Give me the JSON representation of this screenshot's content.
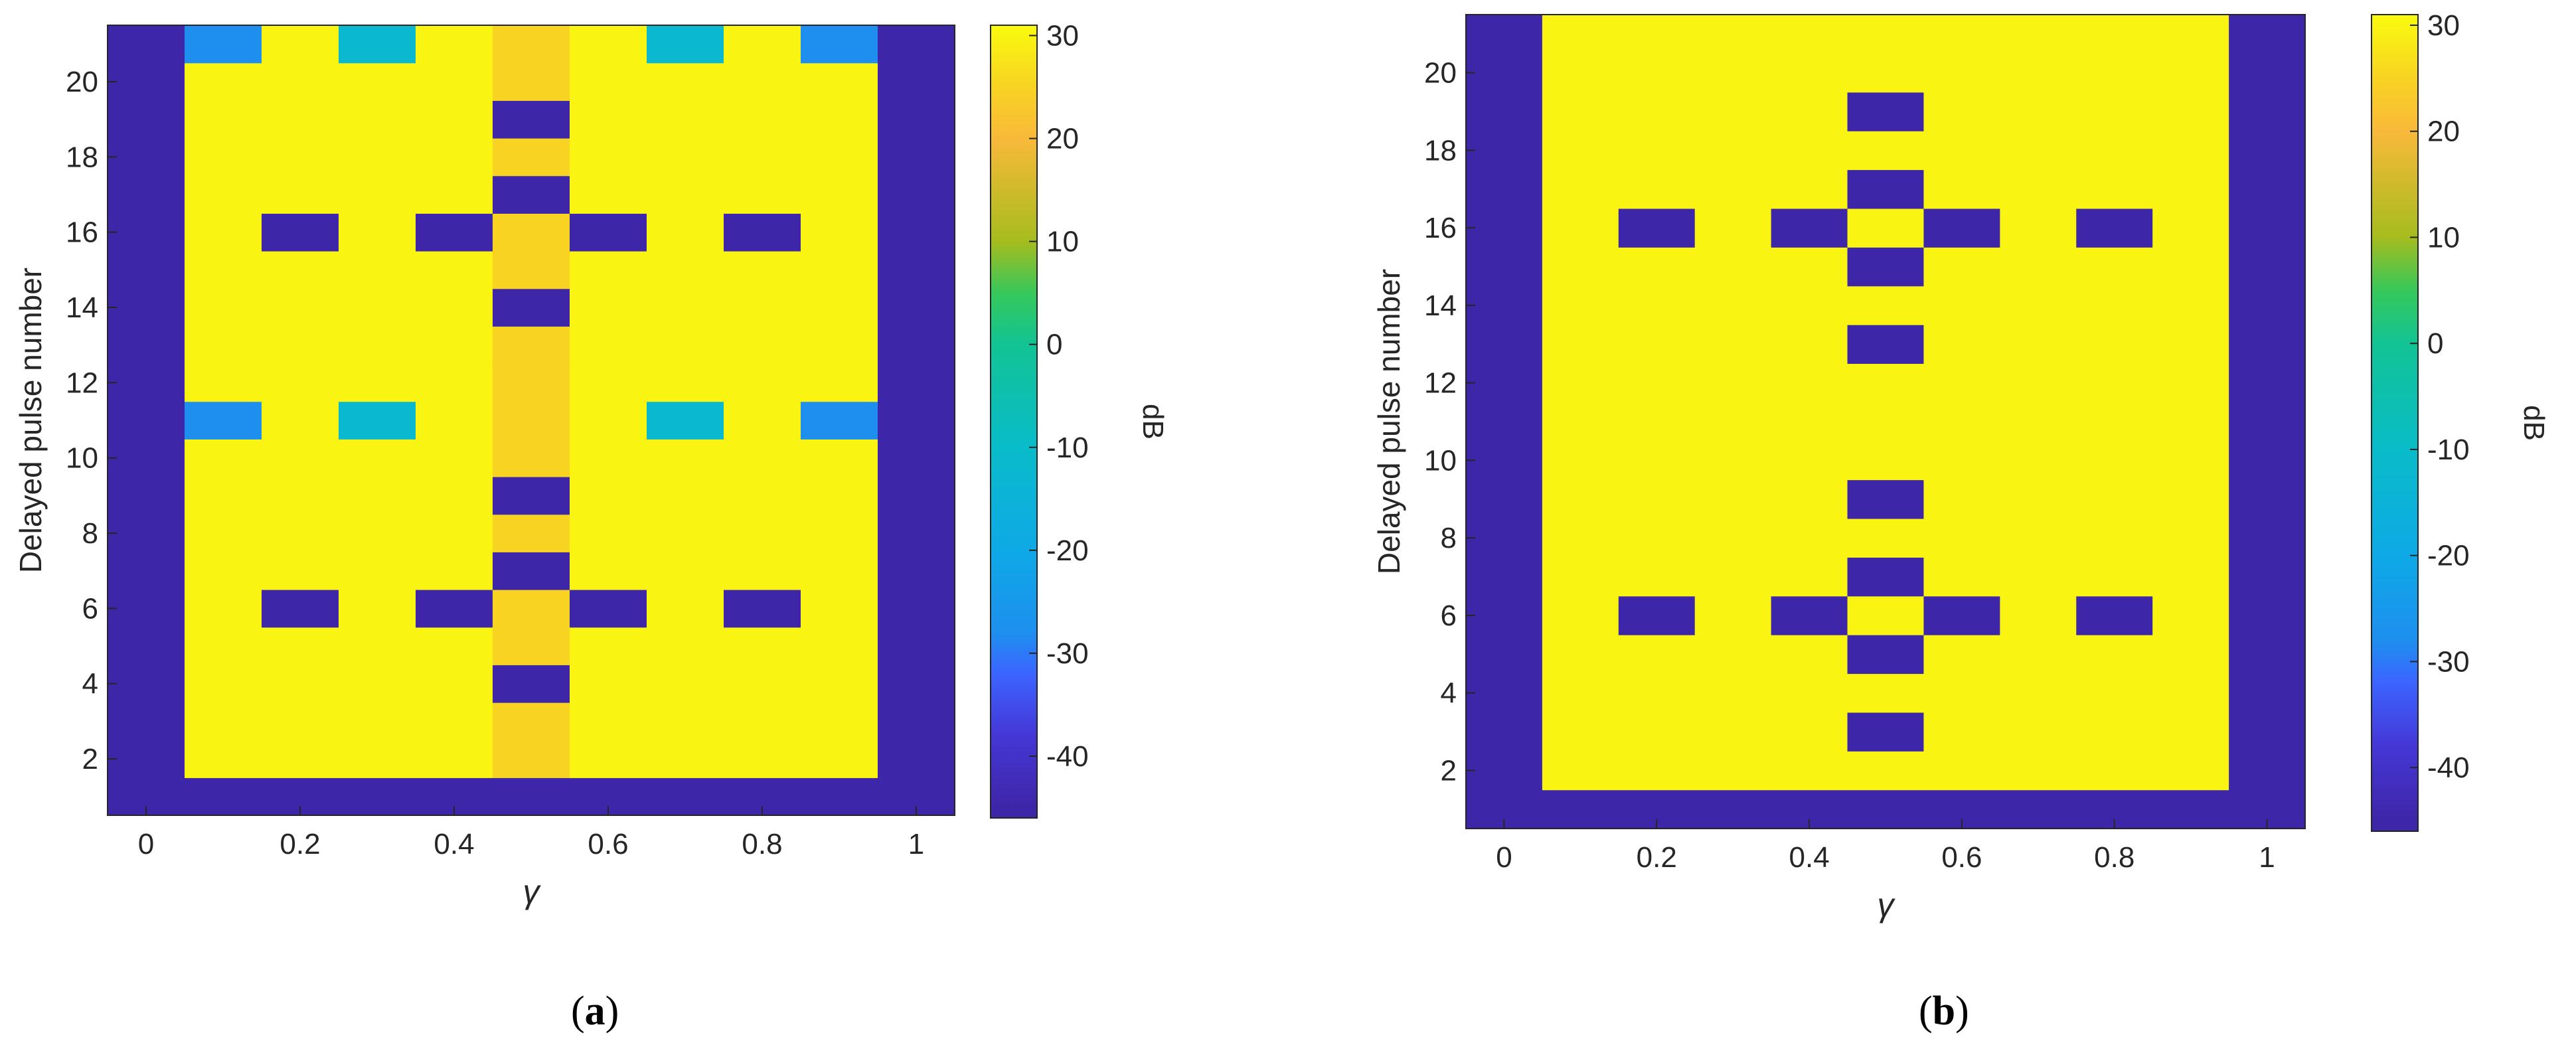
{
  "colors": {
    "background": "#3d2aa8",
    "yellow": "#f8f904",
    "gold": "#fbcf26",
    "lightblue": "#1f8ef0",
    "teal": "#14b5c4",
    "colorbar_stops": [
      {
        "v": -45,
        "c": "#3e26a8"
      },
      {
        "v": -38,
        "c": "#4537d6"
      },
      {
        "v": -32,
        "c": "#3c64ff"
      },
      {
        "v": -28,
        "c": "#1e8fef"
      },
      {
        "v": -20,
        "c": "#0ea9e6"
      },
      {
        "v": -10,
        "c": "#09bcc9"
      },
      {
        "v": 0,
        "c": "#12c394"
      },
      {
        "v": 5,
        "c": "#36c85a"
      },
      {
        "v": 10,
        "c": "#a6bc1e"
      },
      {
        "v": 20,
        "c": "#f9b93a"
      },
      {
        "v": 25,
        "c": "#f8d322"
      },
      {
        "v": 31,
        "c": "#f9fb0e"
      }
    ]
  },
  "chart_data": [
    {
      "type": "heatmap",
      "panel_label": "a",
      "xlabel": "γ",
      "ylabel": "Delayed pulse number",
      "colorbar_label": "dB",
      "xlim": [
        -0.05,
        1.05
      ],
      "ylim": [
        0.5,
        21.5
      ],
      "x_ticks": [
        0,
        0.2,
        0.4,
        0.6,
        0.8,
        1
      ],
      "y_ticks": [
        2,
        4,
        6,
        8,
        10,
        12,
        14,
        16,
        18,
        20
      ],
      "colorbar_ticks": [
        30,
        20,
        10,
        0,
        -10,
        -20,
        -30,
        -40
      ],
      "colorbar_range": [
        -46,
        31
      ],
      "x": [
        0,
        0.1,
        0.2,
        0.3,
        0.4,
        0.5,
        0.6,
        0.7,
        0.8,
        0.9,
        1
      ],
      "y": [
        1,
        2,
        3,
        4,
        5,
        6,
        7,
        8,
        9,
        10,
        11,
        12,
        13,
        14,
        15,
        16,
        17,
        18,
        19,
        20,
        21
      ],
      "background_db": -45,
      "block_db": 30,
      "blocks": [
        {
          "x_from": 0.1,
          "x_to": 0.9,
          "y_from": 2,
          "y_to": 11
        },
        {
          "x_from": 0.1,
          "x_to": 0.9,
          "y_from": 12,
          "y_to": 21
        }
      ],
      "overrides": [
        {
          "x": 0.5,
          "y": [
            2,
            3,
            5,
            6,
            8,
            10,
            11,
            12,
            13,
            15,
            16,
            18,
            20,
            21
          ],
          "db": 25
        },
        {
          "x": 0.1,
          "y": [
            11,
            21
          ],
          "db": -28
        },
        {
          "x": 0.9,
          "y": [
            11,
            21
          ],
          "db": -28
        },
        {
          "x": 0.3,
          "y": [
            11,
            21
          ],
          "db": -12
        },
        {
          "x": 0.7,
          "y": [
            11,
            21
          ],
          "db": -12
        },
        {
          "x": 0.5,
          "y": [
            4,
            7,
            9,
            14,
            17,
            19
          ],
          "db": -45
        },
        {
          "x": 0.2,
          "y": [
            6,
            16
          ],
          "db": -45
        },
        {
          "x": 0.4,
          "y": [
            6,
            16
          ],
          "db": -45
        },
        {
          "x": 0.6,
          "y": [
            6,
            16
          ],
          "db": -45
        },
        {
          "x": 0.8,
          "y": [
            6,
            16
          ],
          "db": -45
        }
      ]
    },
    {
      "type": "heatmap",
      "panel_label": "b",
      "xlabel": "γ",
      "ylabel": "Delayed pulse number",
      "colorbar_label": "dB",
      "xlim": [
        -0.05,
        1.05
      ],
      "ylim": [
        0.5,
        21.5
      ],
      "x_ticks": [
        0,
        0.2,
        0.4,
        0.6,
        0.8,
        1
      ],
      "y_ticks": [
        2,
        4,
        6,
        8,
        10,
        12,
        14,
        16,
        18,
        20
      ],
      "colorbar_ticks": [
        30,
        20,
        10,
        0,
        -10,
        -20,
        -30,
        -40
      ],
      "colorbar_range": [
        -46,
        31
      ],
      "x": [
        0,
        0.1,
        0.2,
        0.3,
        0.4,
        0.5,
        0.6,
        0.7,
        0.8,
        0.9,
        1
      ],
      "y": [
        1,
        2,
        3,
        4,
        5,
        6,
        7,
        8,
        9,
        10,
        11,
        12,
        13,
        14,
        15,
        16,
        17,
        18,
        19,
        20,
        21
      ],
      "background_db": -45,
      "block_db": 30,
      "blocks": [
        {
          "x_from": 0.1,
          "x_to": 0.9,
          "y_from": 2,
          "y_to": 11
        },
        {
          "x_from": 0.1,
          "x_to": 0.9,
          "y_from": 12,
          "y_to": 21
        }
      ],
      "overrides": [
        {
          "x": 0.5,
          "y": [
            3,
            5,
            7,
            9,
            13,
            15,
            17,
            19
          ],
          "db": -45
        },
        {
          "x": 0.2,
          "y": [
            6,
            16
          ],
          "db": -45
        },
        {
          "x": 0.4,
          "y": [
            6,
            16
          ],
          "db": -45
        },
        {
          "x": 0.6,
          "y": [
            6,
            16
          ],
          "db": -45
        },
        {
          "x": 0.8,
          "y": [
            6,
            16
          ],
          "db": -45
        }
      ]
    }
  ]
}
